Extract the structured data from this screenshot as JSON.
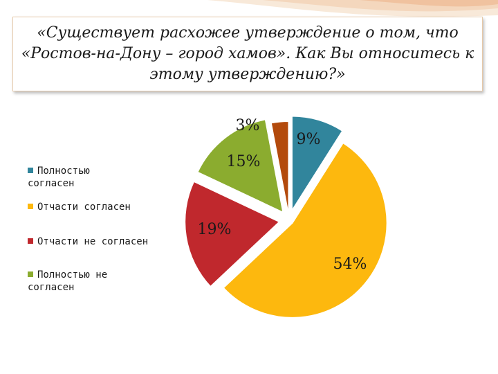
{
  "title": "«Существует расхожее утверждение о том, что «Ростов-на-Дону – город хамов». Как Вы относитесь к этому утверждению?»",
  "chart_data": {
    "type": "pie",
    "legend_position": "left",
    "slices": [
      {
        "label": "Полностью согласен",
        "value": 9,
        "display": "9%",
        "color": "#31859c",
        "in_legend": true
      },
      {
        "label": "Отчасти согласен",
        "value": 54,
        "display": "54%",
        "color": "#fdb80e",
        "in_legend": true
      },
      {
        "label": "Отчасти не согласен",
        "value": 19,
        "display": "19%",
        "color": "#c0282d",
        "in_legend": true
      },
      {
        "label": "Полностью не согласен",
        "value": 15,
        "display": "15%",
        "color": "#8bac2f",
        "in_legend": true
      },
      {
        "label": "",
        "value": 3,
        "display": "3%",
        "color": "#b34a0c",
        "in_legend": false
      }
    ]
  }
}
